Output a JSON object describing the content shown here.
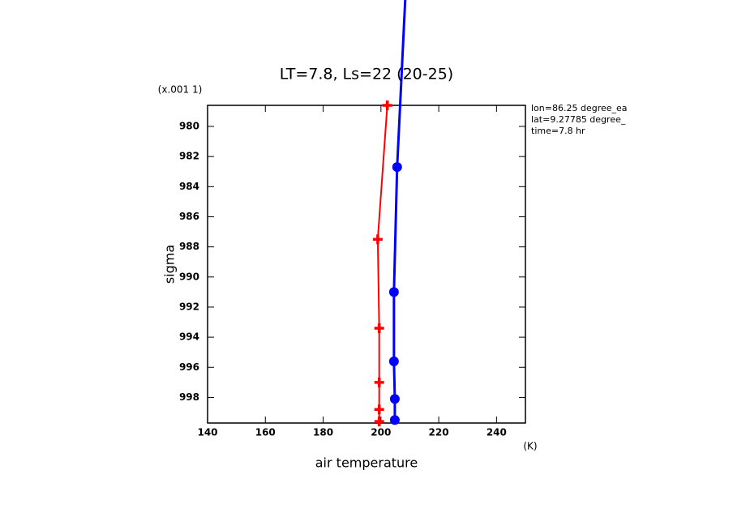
{
  "chart_data": {
    "type": "line",
    "title": "LT=7.8, Ls=22 (20-25)",
    "y_scale_note": "(x.001 1)",
    "xlabel": "air temperature",
    "x_unit": "(K)",
    "ylabel": "sigma",
    "info": [
      "lon=86.25 degree_ea",
      "lat=9.27785 degree_",
      "time=7.8 hr"
    ],
    "xlim": [
      140,
      250
    ],
    "xticks": [
      140,
      160,
      180,
      200,
      220,
      240
    ],
    "ylim": [
      978.6,
      999.7
    ],
    "yticks": [
      980,
      982,
      984,
      986,
      988,
      990,
      992,
      994,
      996,
      998
    ],
    "y_inverted": true,
    "series": [
      {
        "color": "#ff0000",
        "marker": "plus",
        "x": [
          202.2,
          198.9,
          199.4,
          199.4,
          199.4,
          199.4
        ],
        "values": [
          978.6,
          987.5,
          993.4,
          997.0,
          998.8,
          999.6
        ]
      },
      {
        "color": "#0000ff",
        "marker": "circle",
        "x": [
          208.4,
          205.6,
          204.5,
          204.5,
          204.8,
          204.8
        ],
        "values": [
          971.6,
          982.7,
          991.0,
          995.6,
          998.1,
          999.5
        ]
      }
    ]
  }
}
